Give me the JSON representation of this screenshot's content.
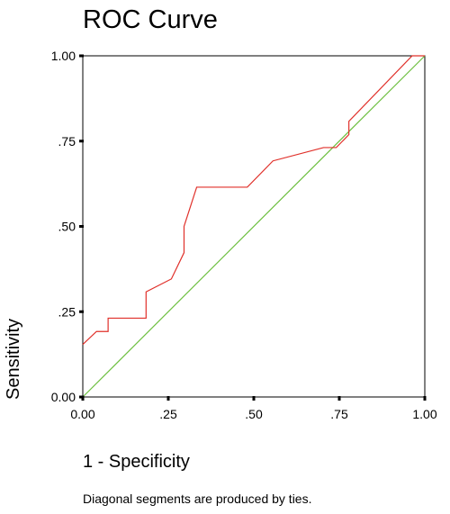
{
  "chart_data": {
    "type": "line",
    "title": "ROC Curve",
    "xlabel": "1 - Specificity",
    "ylabel": "Sensitivity",
    "footnote": "Diagonal segments are produced by ties.",
    "xlim": [
      0,
      1
    ],
    "ylim": [
      0,
      1
    ],
    "x_ticks": [
      0,
      0.25,
      0.5,
      0.75,
      1
    ],
    "x_tick_labels": [
      "0.00",
      ".25",
      ".50",
      ".75",
      "1.00"
    ],
    "y_ticks": [
      0,
      0.25,
      0.5,
      0.75,
      1
    ],
    "y_tick_labels": [
      "0.00",
      ".25",
      ".50",
      ".75",
      "1.00"
    ],
    "grid": false,
    "colors": {
      "roc": "#e0302a",
      "reference": "#6cbf3f",
      "axis": "#000000"
    },
    "series": [
      {
        "x": [
          0,
          0.04,
          0.074,
          0.074,
          0.185,
          0.185,
          0.259,
          0.296,
          0.296,
          0.333,
          0.481,
          0.556,
          0.704,
          0.741,
          0.778,
          0.778,
          0.963,
          1.0
        ],
        "y": [
          0.154,
          0.192,
          0.192,
          0.231,
          0.231,
          0.308,
          0.346,
          0.423,
          0.5,
          0.615,
          0.615,
          0.692,
          0.731,
          0.731,
          0.769,
          0.808,
          1.0,
          1.0
        ]
      },
      {
        "x": [
          0,
          1
        ],
        "y": [
          0,
          1
        ]
      }
    ]
  }
}
